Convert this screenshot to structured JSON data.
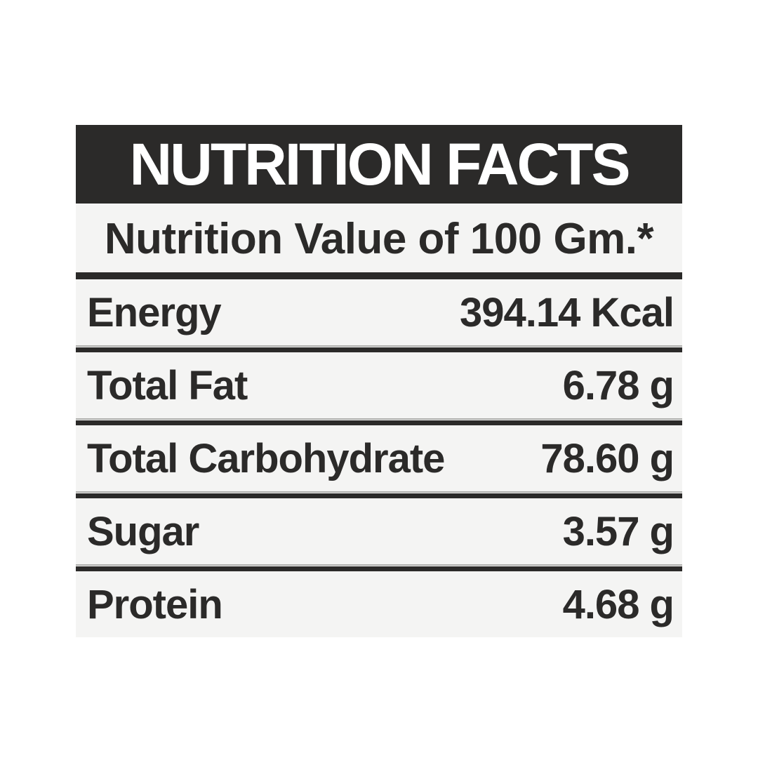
{
  "label": {
    "title": "NUTRITION FACTS",
    "subtitle": "Nutrition Value of 100 Gm.*",
    "rows": [
      {
        "name": "Energy",
        "value": "394.14 Kcal"
      },
      {
        "name": "Total Fat",
        "value": "6.78 g"
      },
      {
        "name": "Total Carbohydrate",
        "value": "78.60 g"
      },
      {
        "name": "Sugar",
        "value": "3.57 g"
      },
      {
        "name": "Protein",
        "value": "4.68 g"
      }
    ],
    "colors": {
      "header_bg": "#2b2a29",
      "header_text": "#ffffff",
      "row_bg": "#f4f4f3",
      "ink": "#2b2a29",
      "page_bg": "#ffffff"
    }
  }
}
